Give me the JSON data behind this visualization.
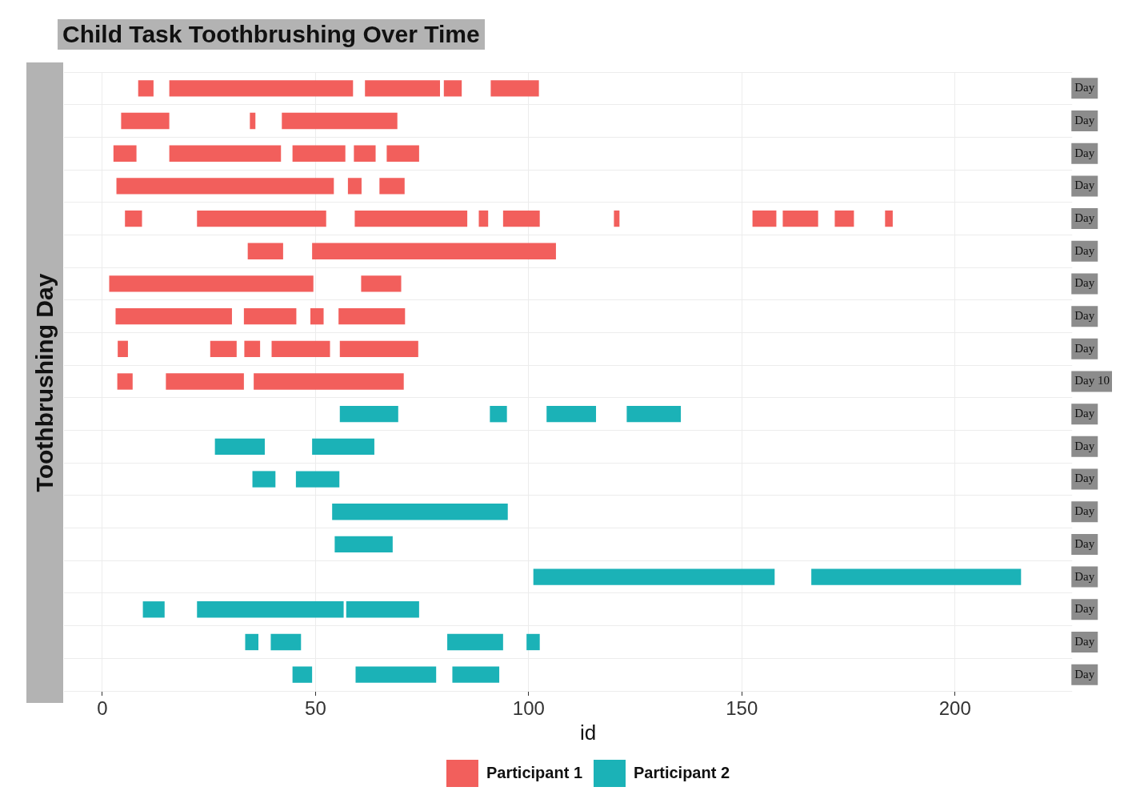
{
  "chart_data": {
    "type": "bar",
    "orientation": "horizontal",
    "title": "Child Task Toothbrushing Over Time",
    "ylabel": "Toothbrushing Day",
    "legend_title": "id",
    "legend": "bottom",
    "grid": true,
    "categories": [
      "Day",
      "Day",
      "Day",
      "Day",
      "Day",
      "Day",
      "Day",
      "Day",
      "Day",
      "Day 10",
      "Day",
      "Day",
      "Day",
      "Day",
      "Day",
      "Day",
      "Day",
      "Day",
      "Day"
    ],
    "xlim": [
      -9,
      226
    ],
    "xticks": [
      0,
      50,
      100,
      150,
      200
    ],
    "series": [
      {
        "name": "Participant 1",
        "color": "#f25f5c",
        "base": [
          8.4,
          4.4,
          2.6,
          3.3,
          5.3,
          34.1,
          1.6,
          3.1,
          3.6,
          3.5,
          null,
          null,
          null,
          null,
          null,
          null,
          null,
          null,
          null
        ],
        "values": [
          3.6,
          11.3,
          5.4,
          51.0,
          4.0,
          8.3,
          47.9,
          27.3,
          2.4,
          3.6,
          null,
          null,
          null,
          null,
          null,
          null,
          null,
          null,
          null
        ]
      },
      {
        "color": "#f25f5c",
        "base": [
          15.7,
          34.6,
          15.7,
          57.6,
          22.2,
          49.2,
          60.7,
          33.2,
          25.3,
          14.9,
          null,
          null,
          null,
          null,
          null,
          null,
          null,
          null,
          null
        ],
        "values": [
          43.1,
          1.3,
          26.2,
          3.2,
          30.3,
          57.2,
          9.4,
          12.3,
          6.2,
          18.3,
          null,
          null,
          null,
          null,
          null,
          null,
          null,
          null,
          null
        ]
      },
      {
        "color": "#f25f5c",
        "base": [
          61.6,
          42.1,
          44.6,
          65.0,
          59.2,
          null,
          null,
          48.8,
          33.3,
          35.5,
          null,
          null,
          null,
          null,
          null,
          null,
          null,
          null,
          null
        ],
        "values": [
          17.6,
          27.1,
          12.4,
          5.9,
          26.4,
          null,
          null,
          3.1,
          3.7,
          35.2,
          null,
          null,
          null,
          null,
          null,
          null,
          null,
          null,
          null
        ]
      },
      {
        "color": "#f25f5c",
        "base": [
          80.1,
          null,
          59.0,
          null,
          88.3,
          null,
          null,
          55.4,
          39.7,
          null,
          null,
          null,
          null,
          null,
          null,
          null,
          null,
          null,
          null
        ],
        "values": [
          4.2,
          null,
          5.1,
          null,
          2.2,
          null,
          null,
          15.6,
          13.7,
          null,
          null,
          null,
          null,
          null,
          null,
          null,
          null,
          null,
          null
        ]
      },
      {
        "color": "#f25f5c",
        "base": [
          91.1,
          null,
          66.7,
          null,
          94.0,
          null,
          null,
          null,
          55.7,
          null,
          null,
          null,
          null,
          null,
          null,
          null,
          null,
          null,
          null
        ],
        "values": [
          11.3,
          null,
          7.6,
          null,
          8.6,
          null,
          null,
          null,
          18.4,
          null,
          null,
          null,
          null,
          null,
          null,
          null,
          null,
          null,
          null
        ]
      },
      {
        "color": "#f25f5c",
        "base": [
          null,
          null,
          null,
          null,
          120.0,
          null,
          null,
          null,
          null,
          null,
          null,
          null,
          null,
          null,
          null,
          null,
          null,
          null,
          null
        ],
        "values": [
          null,
          null,
          null,
          null,
          1.3,
          null,
          null,
          null,
          null,
          null,
          null,
          null,
          null,
          null,
          null,
          null,
          null,
          null,
          null
        ]
      },
      {
        "color": "#f25f5c",
        "base": [
          null,
          null,
          null,
          null,
          152.5,
          null,
          null,
          null,
          null,
          null,
          null,
          null,
          null,
          null,
          null,
          null,
          null,
          null,
          null
        ],
        "values": [
          null,
          null,
          null,
          null,
          5.6,
          null,
          null,
          null,
          null,
          null,
          null,
          null,
          null,
          null,
          null,
          null,
          null,
          null,
          null
        ]
      },
      {
        "color": "#f25f5c",
        "base": [
          null,
          null,
          null,
          null,
          159.6,
          null,
          null,
          null,
          null,
          null,
          null,
          null,
          null,
          null,
          null,
          null,
          null,
          null,
          null
        ],
        "values": [
          null,
          null,
          null,
          null,
          8.3,
          null,
          null,
          null,
          null,
          null,
          null,
          null,
          null,
          null,
          null,
          null,
          null,
          null,
          null
        ]
      },
      {
        "color": "#f25f5c",
        "base": [
          null,
          null,
          null,
          null,
          171.8,
          null,
          null,
          null,
          null,
          null,
          null,
          null,
          null,
          null,
          null,
          null,
          null,
          null,
          null
        ],
        "values": [
          null,
          null,
          null,
          null,
          4.5,
          null,
          null,
          null,
          null,
          null,
          null,
          null,
          null,
          null,
          null,
          null,
          null,
          null,
          null
        ]
      },
      {
        "color": "#f25f5c",
        "base": [
          null,
          null,
          null,
          null,
          183.6,
          null,
          null,
          null,
          null,
          null,
          null,
          null,
          null,
          null,
          null,
          null,
          null,
          null,
          null
        ],
        "values": [
          null,
          null,
          null,
          null,
          1.8,
          null,
          null,
          null,
          null,
          null,
          null,
          null,
          null,
          null,
          null,
          null,
          null,
          null,
          null
        ]
      },
      {
        "name": "Participant 2",
        "color": "#1bb2b7",
        "base": [
          null,
          null,
          null,
          null,
          null,
          null,
          null,
          null,
          null,
          null,
          55.7,
          26.4,
          35.2,
          53.9,
          54.5,
          101.1,
          9.5,
          33.5,
          44.6
        ],
        "values": [
          null,
          null,
          null,
          null,
          null,
          null,
          null,
          null,
          null,
          null,
          13.7,
          11.7,
          5.4,
          41.2,
          13.6,
          56.6,
          5.1,
          3.1,
          4.6
        ]
      },
      {
        "color": "#1bb2b7",
        "base": [
          null,
          null,
          null,
          null,
          null,
          null,
          null,
          null,
          null,
          null,
          90.9,
          49.2,
          45.4,
          null,
          null,
          166.3,
          22.2,
          39.5,
          59.4
        ],
        "values": [
          null,
          null,
          null,
          null,
          null,
          null,
          null,
          null,
          null,
          null,
          4.0,
          14.6,
          10.2,
          null,
          null,
          49.2,
          34.4,
          7.1,
          18.9
        ]
      },
      {
        "color": "#1bb2b7",
        "base": [
          null,
          null,
          null,
          null,
          null,
          null,
          null,
          null,
          null,
          null,
          104.2,
          null,
          null,
          null,
          null,
          null,
          57.2,
          80.9,
          82.1
        ],
        "values": [
          null,
          null,
          null,
          null,
          null,
          null,
          null,
          null,
          null,
          null,
          11.6,
          null,
          null,
          null,
          null,
          null,
          17.1,
          13.1,
          11.0
        ]
      },
      {
        "color": "#1bb2b7",
        "base": [
          null,
          null,
          null,
          null,
          null,
          null,
          null,
          null,
          null,
          null,
          123.0,
          null,
          null,
          null,
          null,
          null,
          null,
          99.5,
          null
        ],
        "values": [
          null,
          null,
          null,
          null,
          null,
          null,
          null,
          null,
          null,
          null,
          12.7,
          null,
          null,
          null,
          null,
          null,
          null,
          3.1,
          null
        ]
      }
    ]
  }
}
